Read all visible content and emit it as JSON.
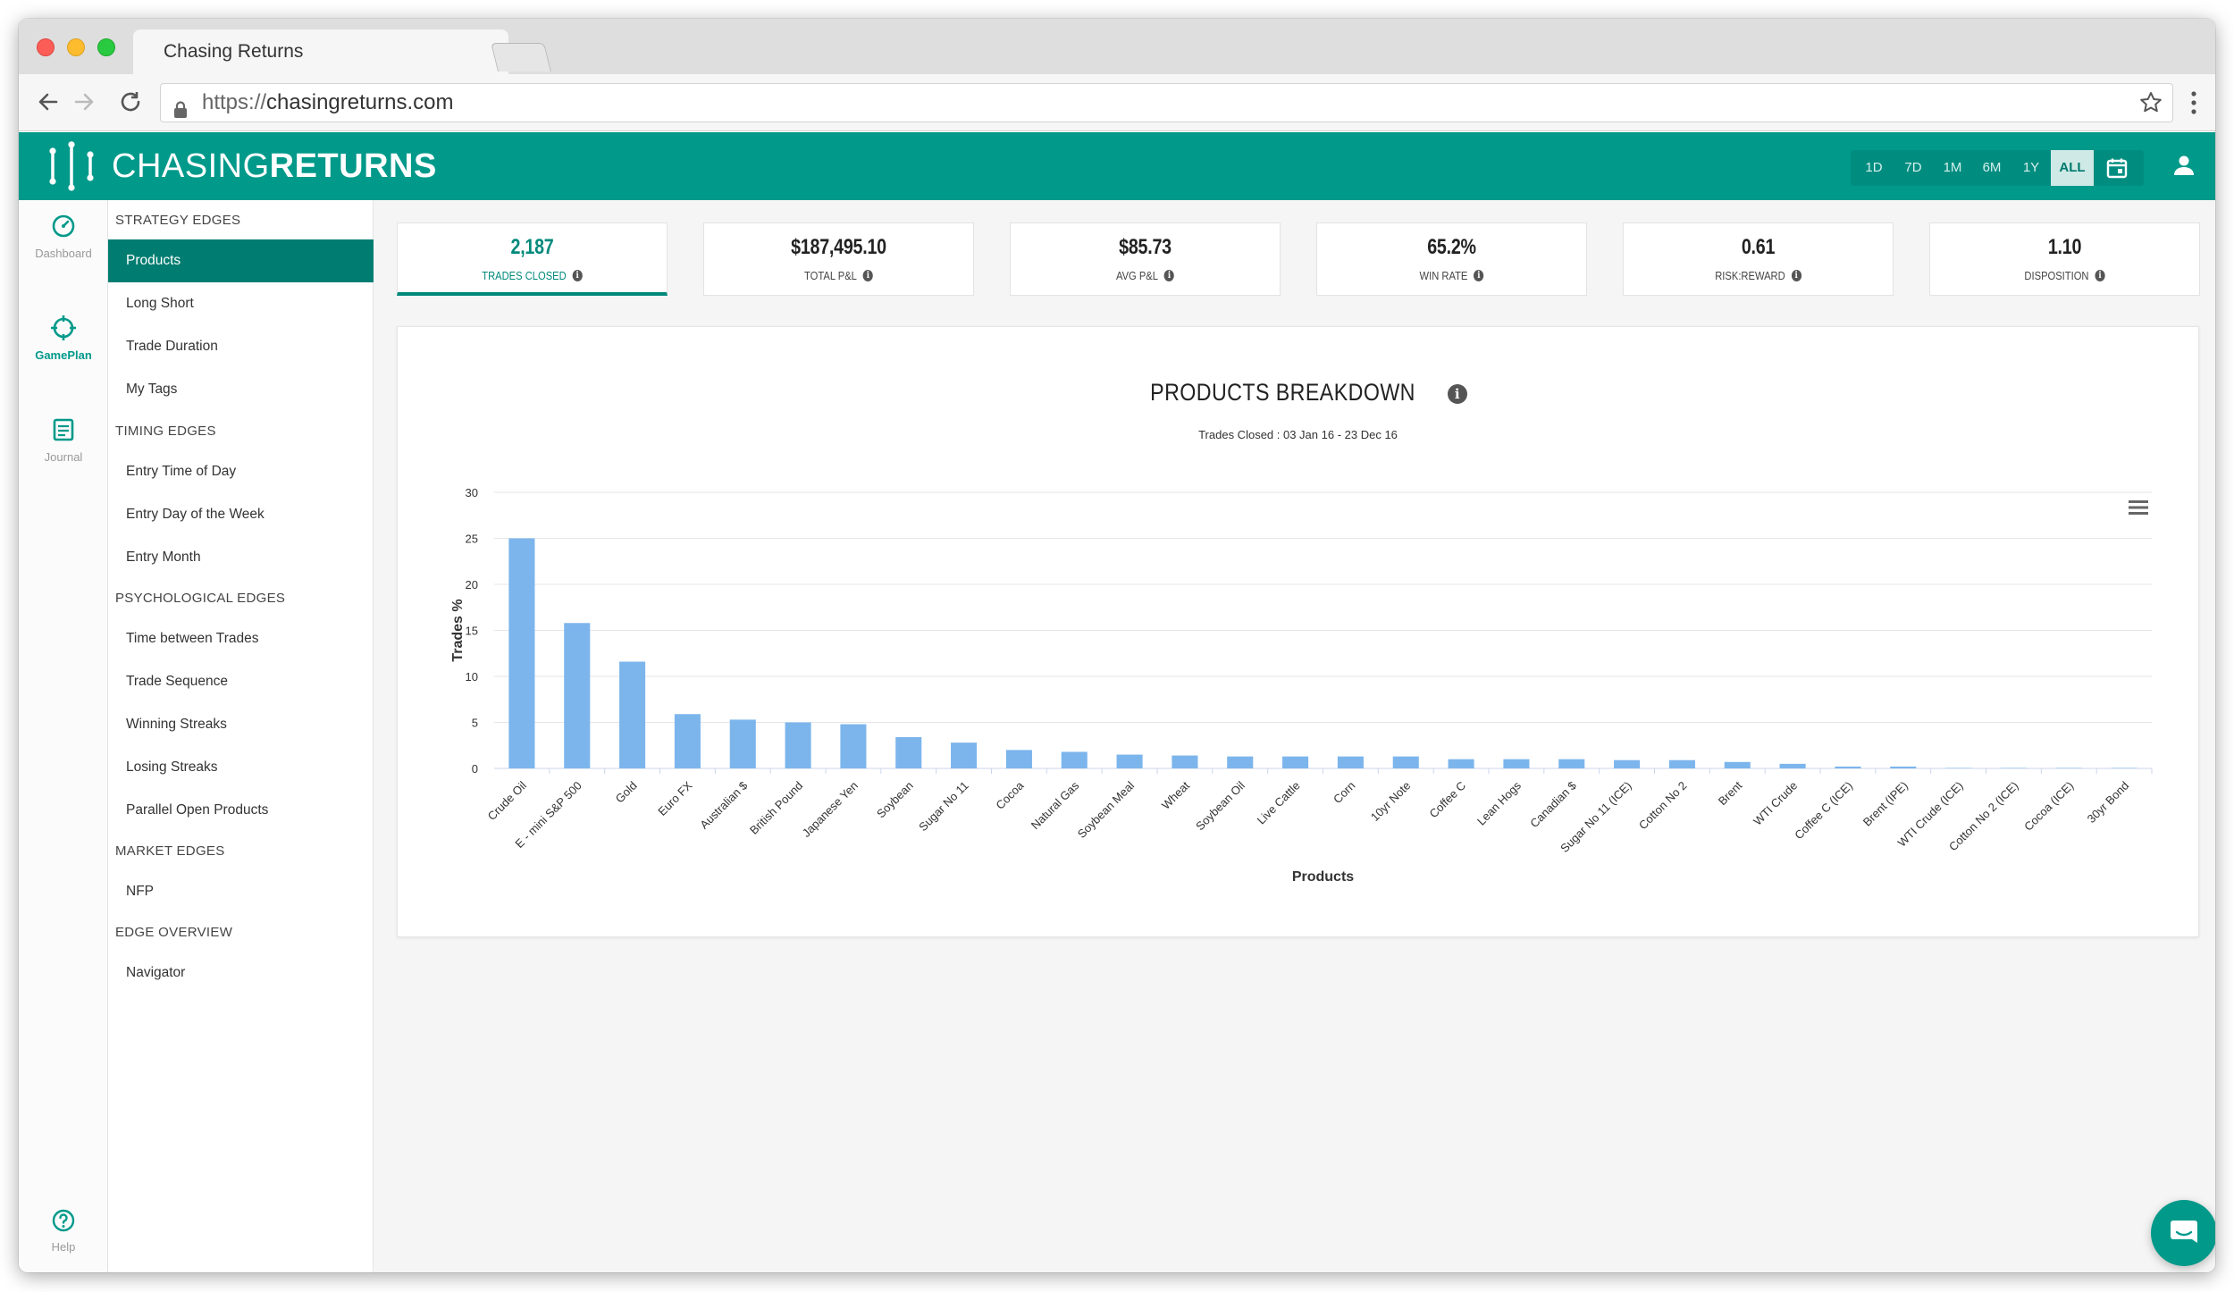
{
  "browser": {
    "tab_title": "Chasing Returns",
    "url_scheme": "https://",
    "url_host": "chasingreturns.com"
  },
  "header": {
    "logo_light": "CHASING",
    "logo_bold": "RETURNS",
    "ranges": [
      "1D",
      "7D",
      "1M",
      "6M",
      "1Y",
      "ALL"
    ],
    "active_range": "ALL"
  },
  "rail": {
    "dashboard": "Dashboard",
    "gameplan": "GamePlan",
    "journal": "Journal",
    "help": "Help"
  },
  "subnav": {
    "strategy_edges": "STRATEGY EDGES",
    "products": "Products",
    "long_short": "Long Short",
    "trade_duration": "Trade Duration",
    "my_tags": "My Tags",
    "timing_edges": "TIMING EDGES",
    "entry_time_of_day": "Entry Time of Day",
    "entry_day_of_week": "Entry Day of the Week",
    "entry_month": "Entry Month",
    "psychological_edges": "PSYCHOLOGICAL EDGES",
    "time_between_trades": "Time between Trades",
    "trade_sequence": "Trade Sequence",
    "winning_streaks": "Winning Streaks",
    "losing_streaks": "Losing Streaks",
    "parallel_open_products": "Parallel Open Products",
    "market_edges": "MARKET EDGES",
    "nfp": "NFP",
    "edge_overview": "EDGE OVERVIEW",
    "navigator": "Navigator"
  },
  "stats": {
    "trades_closed": {
      "value": "2,187",
      "label": "TRADES CLOSED"
    },
    "total_pl": {
      "value": "$187,495.10",
      "label": "TOTAL P&L"
    },
    "avg_pl": {
      "value": "$85.73",
      "label": "AVG P&L"
    },
    "win_rate": {
      "value": "65.2%",
      "label": "WIN RATE"
    },
    "risk_reward": {
      "value": "0.61",
      "label": "RISK:REWARD"
    },
    "disposition": {
      "value": "1.10",
      "label": "DISPOSITION"
    }
  },
  "chart": {
    "title": "PRODUCTS BREAKDOWN",
    "subtitle": "Trades Closed : 03 Jan 16  -  23 Dec 16"
  },
  "colors": {
    "brand": "#00998a",
    "brand_dark": "#007d70",
    "bar": "#7cb5ec"
  },
  "chart_data": {
    "type": "bar",
    "title": "PRODUCTS BREAKDOWN",
    "subtitle": "Trades Closed : 03 Jan 16  -  23 Dec 16",
    "xlabel": "Products",
    "ylabel": "Trades %",
    "ylim": [
      0,
      30
    ],
    "yticks": [
      0,
      5,
      10,
      15,
      20,
      25,
      30
    ],
    "grid": true,
    "categories": [
      "Crude Oil",
      "E - mini S&P 500",
      "Gold",
      "Euro FX",
      "Australian $",
      "British Pound",
      "Japanese Yen",
      "Soybean",
      "Sugar No 11",
      "Cocoa",
      "Natural Gas",
      "Soybean Meal",
      "Wheat",
      "Soybean Oil",
      "Live Cattle",
      "Corn",
      "10yr Note",
      "Coffee C",
      "Lean Hogs",
      "Canadian $",
      "Sugar No 11 (ICE)",
      "Cotton No 2",
      "Brent",
      "WTI Crude",
      "Coffee C (ICE)",
      "Brent (IPE)",
      "WTI Crude (ICE)",
      "Cotton No 2 (ICE)",
      "Cocoa (ICE)",
      "30yr Bond"
    ],
    "values": [
      25.0,
      15.8,
      11.6,
      5.9,
      5.3,
      5.0,
      4.8,
      3.4,
      2.8,
      2.0,
      1.8,
      1.5,
      1.4,
      1.3,
      1.3,
      1.3,
      1.3,
      1.0,
      1.0,
      1.0,
      0.9,
      0.9,
      0.7,
      0.5,
      0.2,
      0.2,
      0.05,
      0.05,
      0.05,
      0.05
    ]
  }
}
